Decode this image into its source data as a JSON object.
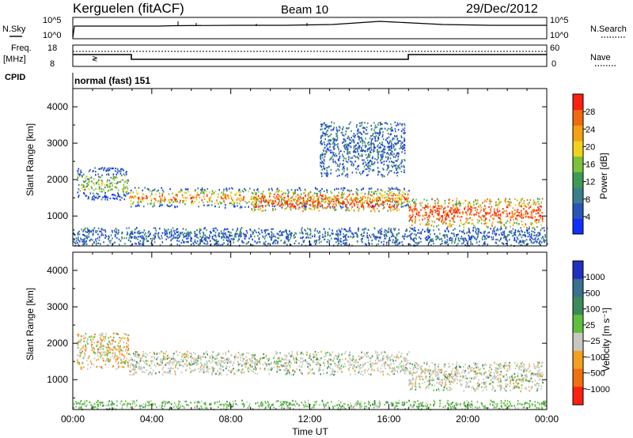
{
  "header": {
    "station": "Kerguelen (fitACF)",
    "beam": "Beam 10",
    "date": "29/Dec/2012"
  },
  "strip": {
    "nsky_label": "N.Sky",
    "nsky_ticks": [
      "10^5",
      "10^0"
    ],
    "nsearch_label": "N.Search",
    "nsearch_ticks": [
      "10^5",
      "10^0"
    ],
    "freq_label": "Freq.",
    "freq_unit": "[MHz]",
    "freq_ticks": [
      "18",
      "8"
    ],
    "nave_label": "Nave",
    "nave_ticks": [
      "60",
      "0"
    ],
    "cpid_label": "CPID",
    "cpid_value": "normal (fast) 151"
  },
  "chart_data": [
    {
      "type": "heatmap",
      "title": "",
      "xlabel": "",
      "ylabel": "Slant Range [km]",
      "xlim": [
        0,
        24
      ],
      "ylim": [
        180,
        4500
      ],
      "yticks": [
        1000,
        2000,
        3000,
        4000
      ],
      "colorbar": {
        "label": "Power [dB]",
        "ticks": [
          "4",
          "8",
          "12",
          "16",
          "20",
          "24",
          "28"
        ],
        "colors": [
          "#1030ff",
          "#2a55b8",
          "#3a7e8e",
          "#3e9a56",
          "#7cc23a",
          "#f0d21e",
          "#f5a015",
          "#f06a10",
          "#ff2010"
        ]
      },
      "echo_regions": [
        {
          "t_start": 0.2,
          "t_end": 2.8,
          "range_min": 1450,
          "range_max": 2350,
          "level": "low-mid"
        },
        {
          "t_start": 2.8,
          "t_end": 17.0,
          "range_min": 1250,
          "range_max": 1800,
          "level": "mid-high"
        },
        {
          "t_start": 9.0,
          "t_end": 16.5,
          "range_min": 1150,
          "range_max": 1550,
          "level": "high"
        },
        {
          "t_start": 17.0,
          "t_end": 23.8,
          "range_min": 700,
          "range_max": 1500,
          "level": "high"
        },
        {
          "t_start": 12.5,
          "t_end": 16.8,
          "range_min": 2100,
          "range_max": 3600,
          "level": "low"
        },
        {
          "t_start": 0.0,
          "t_end": 24.0,
          "range_min": 200,
          "range_max": 700,
          "level": "low"
        }
      ]
    },
    {
      "type": "heatmap",
      "title": "",
      "xlabel": "Time UT",
      "ylabel": "Slant Range [km]",
      "xlim": [
        0,
        24
      ],
      "ylim": [
        180,
        4500
      ],
      "xticks": [
        "00:00",
        "04:00",
        "08:00",
        "12:00",
        "16:00",
        "20:00",
        "00:00"
      ],
      "yticks": [
        1000,
        2000,
        3000,
        4000
      ],
      "colorbar": {
        "label": "Velocity [m s⁻¹]",
        "ticks": [
          "1000",
          "500",
          "100",
          "25",
          "−25",
          "−100",
          "−500",
          "−1000"
        ],
        "colors": [
          "#2030c0",
          "#3a7090",
          "#3c8a5a",
          "#5fc040",
          "#c8c8c0",
          "#f5a020",
          "#f07010",
          "#ff2010"
        ]
      },
      "echo_regions": [
        {
          "t_start": 0.2,
          "t_end": 2.8,
          "range_min": 1300,
          "range_max": 2300,
          "level": "orange/grey"
        },
        {
          "t_start": 2.8,
          "t_end": 17.0,
          "range_min": 1150,
          "range_max": 1800,
          "level": "grey"
        },
        {
          "t_start": 17.0,
          "t_end": 23.8,
          "range_min": 700,
          "range_max": 1500,
          "level": "grey"
        },
        {
          "t_start": 0.0,
          "t_end": 24.0,
          "range_min": 200,
          "range_max": 450,
          "level": "green"
        }
      ]
    }
  ]
}
